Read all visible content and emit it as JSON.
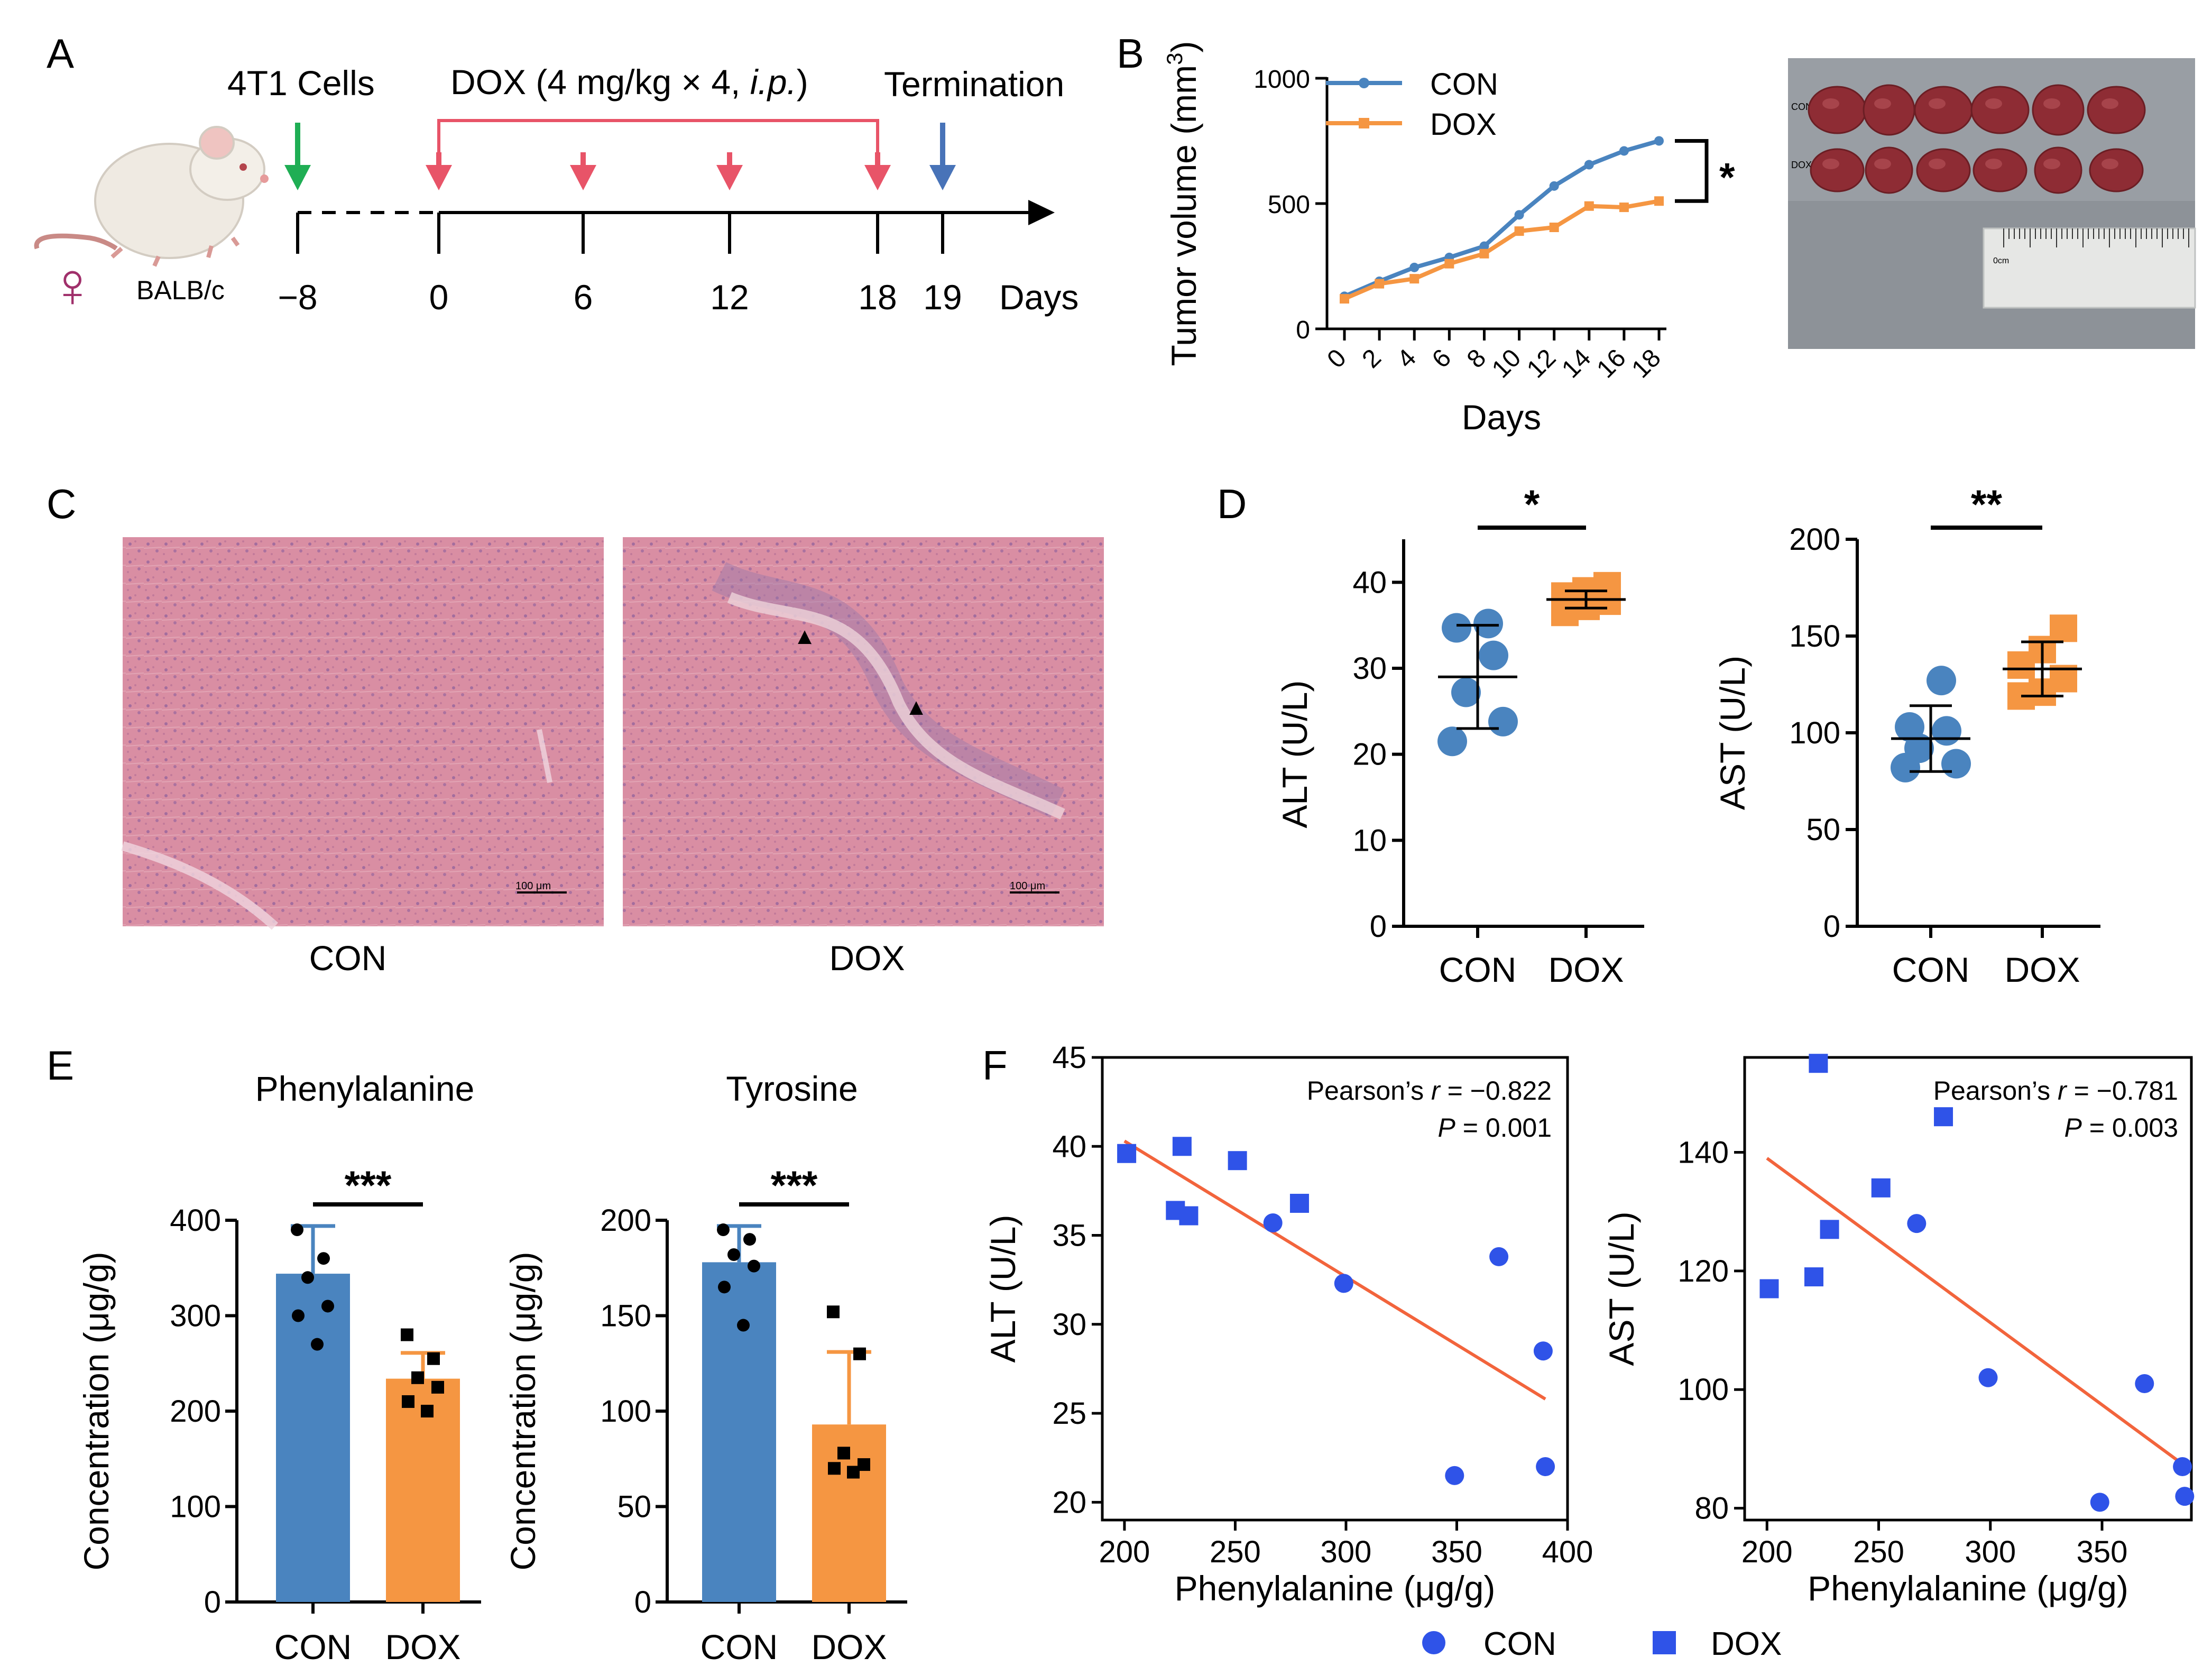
{
  "colors": {
    "con": "#4a84bf",
    "dox": "#f59642",
    "con_dot": "#2f53e8",
    "dox_sq": "#2f53e8",
    "fit": "#f2643c",
    "arrow_green": "#1fae54",
    "arrow_red": "#e85468",
    "arrow_blue": "#4873b8",
    "bracket_red": "#e85468",
    "histo": "#d7899f",
    "photo_bg": "#8a8f95",
    "tumor": "#8e2c34",
    "female": "#a0306b"
  },
  "panels": {
    "A": {
      "letter": "A",
      "labels": {
        "cells": "4T1 Cells",
        "dox_pre": "DOX (4 mg/kg × 4, ",
        "dox_ip": "i.p.",
        "dox_post": ")",
        "termination": "Termination",
        "strain": "BALB/c",
        "female_symbol": "♀",
        "days": "Days"
      },
      "timeline_ticks": [
        "−8",
        "0",
        "6",
        "12",
        "18",
        "19"
      ]
    },
    "B": {
      "letter": "B",
      "photo": {
        "row_label_con": "CON",
        "row_label_dox": "DOX",
        "ruler_label": "0cm"
      },
      "significance": "*"
    },
    "C": {
      "letter": "C",
      "images": [
        {
          "label": "CON",
          "scalebar": "100 μm"
        },
        {
          "label": "DOX",
          "scalebar": "100 μm",
          "marker": "▲"
        }
      ]
    },
    "D": {
      "letter": "D"
    },
    "E": {
      "letter": "E"
    },
    "F": {
      "letter": "F"
    }
  },
  "chart_data": [
    {
      "id": "B_growth",
      "type": "line",
      "title": "",
      "xlabel": "Days",
      "ylabel_main": "Tumor volume (mm",
      "ylabel_sup": "3",
      "ylabel_end": ")",
      "ylim": [
        0,
        1000
      ],
      "yticks": [
        0,
        500,
        1000
      ],
      "xlim": [
        0,
        18
      ],
      "xticks": [
        0,
        2,
        4,
        6,
        8,
        10,
        12,
        14,
        16,
        18
      ],
      "x": [
        0,
        2,
        4,
        6,
        8,
        10,
        12,
        14,
        16,
        18
      ],
      "series": [
        {
          "name": "CON",
          "values": [
            130,
            190,
            245,
            285,
            330,
            455,
            570,
            655,
            710,
            750
          ]
        },
        {
          "name": "DOX",
          "values": [
            120,
            180,
            200,
            260,
            300,
            390,
            405,
            490,
            485,
            510
          ]
        }
      ],
      "significance": "*"
    },
    {
      "id": "D_ALT",
      "type": "scatter",
      "categories": [
        "CON",
        "DOX"
      ],
      "ylabel": "ALT (U/L)",
      "ylim": [
        0,
        45
      ],
      "yticks": [
        0,
        10,
        20,
        30,
        40
      ],
      "groups": [
        {
          "name": "CON",
          "points": [
            21.5,
            23.8,
            27.2,
            31.5,
            34.7,
            35.2
          ],
          "mean": 29,
          "sd_low": 23,
          "sd_high": 35
        },
        {
          "name": "DOX",
          "points": [
            36.5,
            37.2,
            37.8,
            38.4,
            39.0,
            39.6
          ],
          "mean": 38,
          "sd_low": 37,
          "sd_high": 39
        }
      ],
      "significance": "*"
    },
    {
      "id": "D_AST",
      "type": "scatter",
      "categories": [
        "CON",
        "DOX"
      ],
      "ylabel": "AST (U/L)",
      "ylim": [
        0,
        200
      ],
      "yticks": [
        0,
        50,
        100,
        150,
        200
      ],
      "groups": [
        {
          "name": "CON",
          "points": [
            82,
            84,
            92,
            101,
            103,
            127
          ],
          "mean": 97,
          "sd_low": 80,
          "sd_high": 114
        },
        {
          "name": "DOX",
          "points": [
            119,
            121,
            128,
            135,
            143,
            154
          ],
          "mean": 133,
          "sd_low": 119,
          "sd_high": 147
        }
      ],
      "significance": "**"
    },
    {
      "id": "E_Phe",
      "type": "bar",
      "title": "Phenylalanine",
      "categories": [
        "CON",
        "DOX"
      ],
      "ylabel": "Concentration (μg/g)",
      "ylim": [
        0,
        400
      ],
      "yticks": [
        0,
        100,
        200,
        300,
        400
      ],
      "values": [
        344,
        234
      ],
      "errors": [
        50,
        27
      ],
      "points": [
        [
          390,
          360,
          340,
          310,
          300,
          270
        ],
        [
          280,
          255,
          235,
          225,
          210,
          200
        ]
      ],
      "significance": "***"
    },
    {
      "id": "E_Tyr",
      "type": "bar",
      "title": "Tyrosine",
      "categories": [
        "CON",
        "DOX"
      ],
      "ylabel": "Concentration (μg/g)",
      "ylim": [
        0,
        200
      ],
      "yticks": [
        0,
        50,
        100,
        150,
        200
      ],
      "values": [
        178,
        93
      ],
      "errors": [
        19,
        38
      ],
      "points": [
        [
          195,
          190,
          182,
          176,
          165,
          145
        ],
        [
          152,
          130,
          78,
          72,
          70,
          68
        ]
      ],
      "significance": "***"
    },
    {
      "id": "F_ALT",
      "type": "scatter",
      "xlabel": "Phenylalanine (μg/g)",
      "ylabel": "ALT (U/L)",
      "xlim": [
        190,
        400
      ],
      "ylim": [
        19,
        45
      ],
      "xticks": [
        200,
        250,
        300,
        350,
        400
      ],
      "yticks": [
        20,
        25,
        30,
        35,
        40,
        45
      ],
      "series": [
        {
          "name": "CON",
          "x": [
            267,
            299,
            349,
            369,
            389,
            390
          ],
          "y": [
            35.7,
            32.3,
            21.5,
            33.8,
            28.5,
            22.0
          ]
        },
        {
          "name": "DOX",
          "x": [
            201,
            223,
            226,
            229,
            251,
            279
          ],
          "y": [
            39.6,
            36.4,
            40.0,
            36.1,
            39.2,
            36.8
          ]
        }
      ],
      "fit": {
        "x": [
          200,
          390
        ],
        "y": [
          40.3,
          25.8
        ]
      },
      "stats_pre": "Pearson’s ",
      "stats_r": "r",
      "stats_rval": " = −0.822",
      "stats_p": "P",
      "stats_pval": " = 0.001"
    },
    {
      "id": "F_AST",
      "type": "scatter",
      "xlabel": "Phenylalanine (μg/g)",
      "ylabel": "AST (U/L)",
      "xlim": [
        190,
        390
      ],
      "ylim": [
        78,
        156
      ],
      "xticks": [
        200,
        250,
        300,
        350
      ],
      "yticks": [
        80,
        100,
        120,
        140
      ],
      "series": [
        {
          "name": "CON",
          "x": [
            267,
            299,
            349,
            369,
            386,
            387
          ],
          "y": [
            128,
            102,
            81,
            101,
            87,
            82
          ]
        },
        {
          "name": "DOX",
          "x": [
            201,
            221,
            223,
            228,
            251,
            279
          ],
          "y": [
            117,
            119,
            155,
            127,
            134,
            146
          ]
        }
      ],
      "fit": {
        "x": [
          200,
          384
        ],
        "y": [
          139,
          88
        ]
      },
      "stats_pre": "Pearson’s ",
      "stats_r": "r",
      "stats_rval": " = −0.781",
      "stats_p": "P",
      "stats_pval": " = 0.003"
    }
  ],
  "legend_F": {
    "items": [
      "CON",
      "DOX"
    ]
  }
}
